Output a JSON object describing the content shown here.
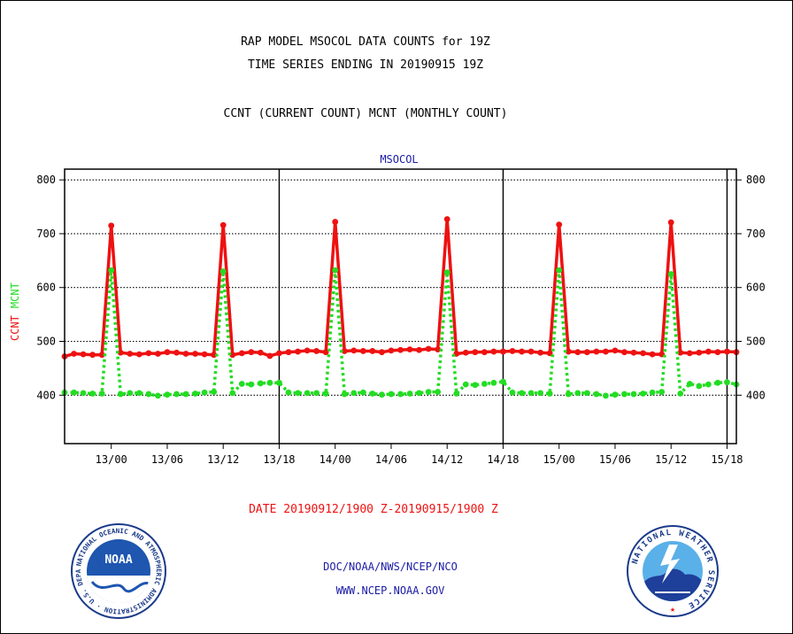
{
  "header": {
    "title1": "RAP MODEL MSOCOL DATA COUNTS for 19Z",
    "title2": "TIME SERIES ENDING IN 20190915 19Z",
    "title3": "CCNT (CURRENT COUNT) MCNT (MONTHLY COUNT)"
  },
  "footer": {
    "date_range": "DATE 20190912/1900 Z-20190915/1900 Z",
    "org_path": "DOC/NOAA/NWS/NCEP/NCO",
    "website": "WWW.NCEP.NOAA.GOV"
  },
  "logos": {
    "noaa": {
      "center_text": "NOAA",
      "ring_text": "NATIONAL OCEANIC AND ATMOSPHERIC ADMINISTRATION · U.S. DEPARTMENT OF COMMERCE",
      "ring_color": "#1a3a8a"
    },
    "nws": {
      "ring_text": "NATIONAL WEATHER SERVICE",
      "ring_color": "#1a3a8a"
    }
  },
  "chart_data": {
    "type": "line",
    "title": "MSOCOL",
    "ylabel_left_parts": [
      {
        "text": "CCNT",
        "color": "#ee1111"
      },
      {
        "text": "MCNT",
        "color": "#22dd22"
      }
    ],
    "ylim": [
      310,
      820
    ],
    "yticks": [
      400,
      500,
      600,
      700,
      800
    ],
    "ytick_labels": [
      "400",
      "500",
      "600",
      "700",
      "800"
    ],
    "x_index_range": [
      0,
      72
    ],
    "xticks": [
      {
        "i": 5,
        "label": "13/00"
      },
      {
        "i": 11,
        "label": "13/06"
      },
      {
        "i": 17,
        "label": "13/12"
      },
      {
        "i": 23,
        "label": "13/18"
      },
      {
        "i": 29,
        "label": "14/00"
      },
      {
        "i": 35,
        "label": "14/06"
      },
      {
        "i": 41,
        "label": "14/12"
      },
      {
        "i": 47,
        "label": "14/18"
      },
      {
        "i": 53,
        "label": "15/00"
      },
      {
        "i": 59,
        "label": "15/06"
      },
      {
        "i": 65,
        "label": "15/12"
      },
      {
        "i": 71,
        "label": "15/18"
      }
    ],
    "day_boundaries": [
      23,
      47,
      71
    ],
    "grid": true,
    "series": [
      {
        "name": "CCNT",
        "color": "#ee1111",
        "style": "solid",
        "values": [
          472,
          477,
          476,
          475,
          475,
          715,
          479,
          477,
          476,
          478,
          477,
          480,
          479,
          477,
          477,
          476,
          475,
          716,
          475,
          478,
          480,
          479,
          473,
          478,
          480,
          481,
          483,
          482,
          480,
          722,
          482,
          483,
          482,
          482,
          480,
          483,
          484,
          485,
          484,
          486,
          485,
          727,
          477,
          479,
          480,
          480,
          481,
          481,
          482,
          481,
          481,
          479,
          478,
          717,
          481,
          480,
          480,
          481,
          481,
          483,
          480,
          479,
          478,
          476,
          476,
          721,
          479,
          478,
          479,
          481,
          480,
          481,
          480
        ]
      },
      {
        "name": "MCNT",
        "color": "#22dd22",
        "style": "dotted",
        "values": [
          405,
          405,
          404,
          403,
          403,
          632,
          402,
          404,
          404,
          402,
          399,
          401,
          402,
          402,
          403,
          405,
          406,
          630,
          404,
          421,
          420,
          422,
          423,
          423,
          405,
          404,
          404,
          404,
          403,
          632,
          402,
          404,
          405,
          403,
          401,
          402,
          402,
          403,
          404,
          406,
          406,
          628,
          403,
          420,
          419,
          421,
          423,
          425,
          405,
          404,
          404,
          404,
          403,
          632,
          402,
          404,
          404,
          402,
          399,
          401,
          402,
          402,
          403,
          405,
          406,
          625,
          403,
          421,
          417,
          420,
          423,
          424,
          420
        ]
      }
    ]
  }
}
